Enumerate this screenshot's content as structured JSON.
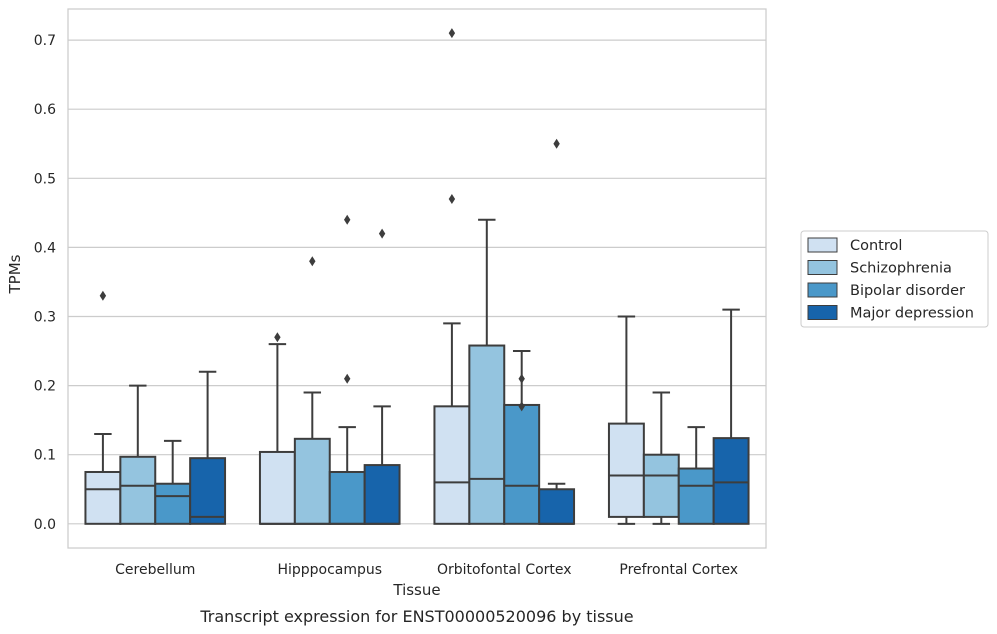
{
  "chart_data": {
    "type": "box",
    "caption": "Transcript expression for ENST00000520096 by tissue",
    "xlabel": "Tissue",
    "ylabel": "TPMs",
    "ylim": [
      -0.035,
      0.745
    ],
    "yticks": [
      "0.0",
      "0.1",
      "0.2",
      "0.3",
      "0.4",
      "0.5",
      "0.6",
      "0.7"
    ],
    "ytick_values": [
      0,
      0.1,
      0.2,
      0.3,
      0.4,
      0.5,
      0.6,
      0.7
    ],
    "grid": "horizontal",
    "legend_position": "right",
    "categories": [
      "Cerebellum",
      "Hipppocampus",
      "Orbitofontal Cortex",
      "Prefrontal Cortex"
    ],
    "series": [
      {
        "name": "Control",
        "color": "#d0e1f2",
        "boxes": [
          {
            "low": 0,
            "q1": 0,
            "median": 0.05,
            "q3": 0.075,
            "high": 0.13,
            "outliers": [
              0.33
            ]
          },
          {
            "low": 0,
            "q1": 0,
            "median": 0,
            "q3": 0.104,
            "high": 0.26,
            "outliers": [
              0.27
            ]
          },
          {
            "low": 0,
            "q1": 0,
            "median": 0.06,
            "q3": 0.17,
            "high": 0.29,
            "outliers": [
              0.47,
              0.71
            ]
          },
          {
            "low": 0,
            "q1": 0.01,
            "median": 0.07,
            "q3": 0.145,
            "high": 0.3,
            "outliers": []
          }
        ]
      },
      {
        "name": "Schizophrenia",
        "color": "#94c4df",
        "boxes": [
          {
            "low": 0,
            "q1": 0,
            "median": 0.055,
            "q3": 0.097,
            "high": 0.2,
            "outliers": []
          },
          {
            "low": 0,
            "q1": 0,
            "median": 0,
            "q3": 0.123,
            "high": 0.19,
            "outliers": [
              0.38
            ]
          },
          {
            "low": 0,
            "q1": 0,
            "median": 0.065,
            "q3": 0.258,
            "high": 0.44,
            "outliers": []
          },
          {
            "low": 0,
            "q1": 0.01,
            "median": 0.07,
            "q3": 0.1,
            "high": 0.19,
            "outliers": []
          }
        ]
      },
      {
        "name": "Bipolar disorder",
        "color": "#4a98c9",
        "boxes": [
          {
            "low": 0,
            "q1": 0,
            "median": 0.04,
            "q3": 0.058,
            "high": 0.12,
            "outliers": []
          },
          {
            "low": 0,
            "q1": 0,
            "median": 0,
            "q3": 0.075,
            "high": 0.14,
            "outliers": [
              0.21,
              0.44
            ]
          },
          {
            "low": 0,
            "q1": 0,
            "median": 0.055,
            "q3": 0.172,
            "high": 0.25,
            "outliers": [
              0.17,
              0.21
            ]
          },
          {
            "low": 0,
            "q1": 0,
            "median": 0.055,
            "q3": 0.08,
            "high": 0.14,
            "outliers": []
          }
        ]
      },
      {
        "name": "Major depression",
        "color": "#1764ab",
        "boxes": [
          {
            "low": 0,
            "q1": 0,
            "median": 0.01,
            "q3": 0.095,
            "high": 0.22,
            "outliers": []
          },
          {
            "low": 0,
            "q1": 0,
            "median": 0,
            "q3": 0.085,
            "high": 0.17,
            "outliers": [
              0.42
            ]
          },
          {
            "low": 0,
            "q1": 0,
            "median": 0,
            "q3": 0.05,
            "high": 0.058,
            "outliers": [
              0.55
            ]
          },
          {
            "low": 0,
            "q1": 0,
            "median": 0.06,
            "q3": 0.124,
            "high": 0.31,
            "outliers": []
          }
        ]
      }
    ]
  }
}
